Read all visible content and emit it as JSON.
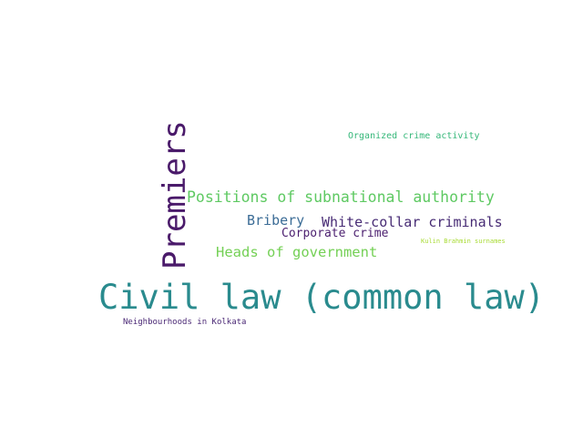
{
  "word_cloud": {
    "words": [
      {
        "text": "Civil law (common law)",
        "color": "#2a8b8e"
      },
      {
        "text": "Premiers",
        "color": "#4a1a6a"
      },
      {
        "text": "Positions of subnational authority",
        "color": "#5ec962"
      },
      {
        "text": "White-collar criminals",
        "color": "#472b74"
      },
      {
        "text": "Bribery",
        "color": "#3b6c96"
      },
      {
        "text": "Corporate crime",
        "color": "#4b1f6f"
      },
      {
        "text": "Heads of government",
        "color": "#74d055"
      },
      {
        "text": "Organized crime activity",
        "color": "#35b779"
      },
      {
        "text": "Neighbourhoods in Kolkata",
        "color": "#4a2875"
      },
      {
        "text": "Kulin Brahmin surnames",
        "color": "#a8db34"
      }
    ]
  }
}
